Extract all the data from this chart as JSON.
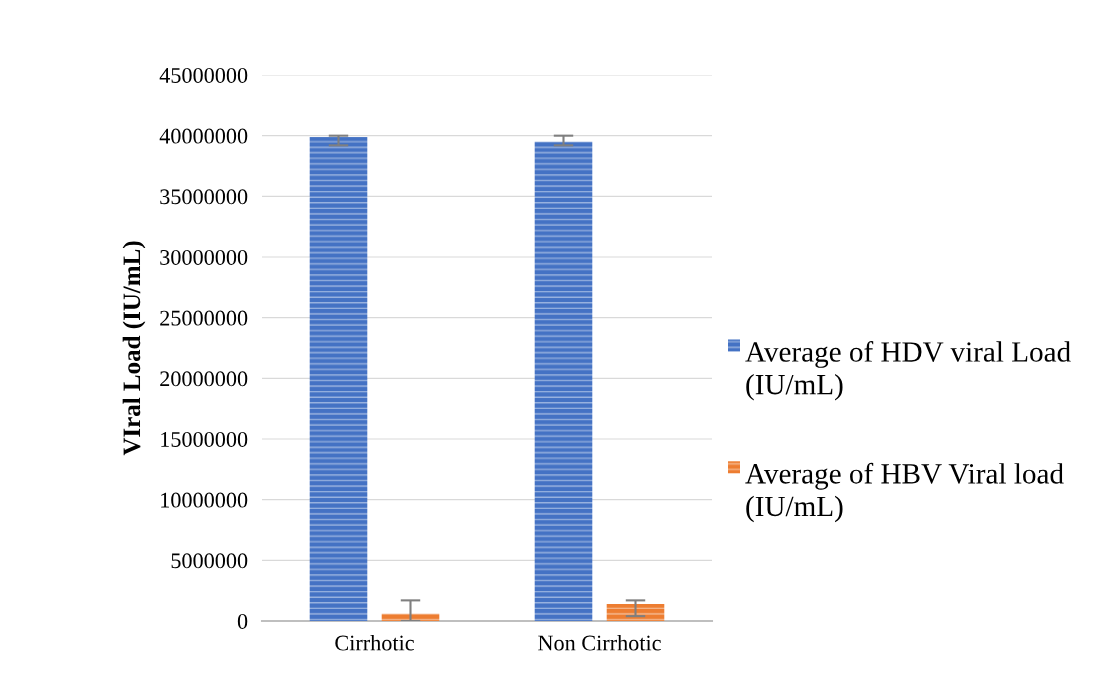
{
  "chart_data": {
    "type": "bar",
    "ylabel": "VIral Load (IU/mL)",
    "categories": [
      "Cirrhotic",
      "Non Cirrhotic"
    ],
    "series": [
      {
        "name": "Average of HDV viral Load (IU/mL)",
        "color": "#4472c4",
        "values": [
          39900000,
          39500000
        ],
        "errors": [
          [
            39200000,
            40000000
          ],
          [
            39200000,
            40000000
          ]
        ]
      },
      {
        "name": "Average of HBV Viral load (IU/mL)",
        "color": "#ed7d31",
        "values": [
          600000,
          1400000
        ],
        "errors": [
          [
            0,
            1700000
          ],
          [
            400000,
            1700000
          ]
        ]
      }
    ],
    "ylim": [
      0,
      45000000
    ],
    "yticks": [
      0,
      5000000,
      10000000,
      15000000,
      20000000,
      25000000,
      30000000,
      35000000,
      40000000,
      45000000
    ],
    "grid": "y",
    "legend": "right"
  }
}
